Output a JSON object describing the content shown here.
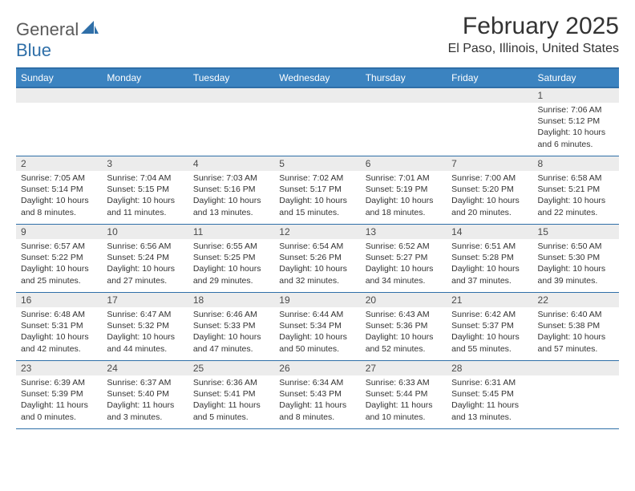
{
  "logo": {
    "word1": "General",
    "word2": "Blue"
  },
  "title": "February 2025",
  "location": "El Paso, Illinois, United States",
  "colors": {
    "header_bg": "#3b83c0",
    "header_border": "#2f6fa8",
    "date_bg": "#ececec",
    "text": "#333333",
    "logo_gray": "#5a5a5a",
    "logo_blue": "#2f6fa8"
  },
  "day_names": [
    "Sunday",
    "Monday",
    "Tuesday",
    "Wednesday",
    "Thursday",
    "Friday",
    "Saturday"
  ],
  "weeks": [
    [
      {
        "date": "",
        "lines": []
      },
      {
        "date": "",
        "lines": []
      },
      {
        "date": "",
        "lines": []
      },
      {
        "date": "",
        "lines": []
      },
      {
        "date": "",
        "lines": []
      },
      {
        "date": "",
        "lines": []
      },
      {
        "date": "1",
        "lines": [
          "Sunrise: 7:06 AM",
          "Sunset: 5:12 PM",
          "Daylight: 10 hours and 6 minutes."
        ]
      }
    ],
    [
      {
        "date": "2",
        "lines": [
          "Sunrise: 7:05 AM",
          "Sunset: 5:14 PM",
          "Daylight: 10 hours and 8 minutes."
        ]
      },
      {
        "date": "3",
        "lines": [
          "Sunrise: 7:04 AM",
          "Sunset: 5:15 PM",
          "Daylight: 10 hours and 11 minutes."
        ]
      },
      {
        "date": "4",
        "lines": [
          "Sunrise: 7:03 AM",
          "Sunset: 5:16 PM",
          "Daylight: 10 hours and 13 minutes."
        ]
      },
      {
        "date": "5",
        "lines": [
          "Sunrise: 7:02 AM",
          "Sunset: 5:17 PM",
          "Daylight: 10 hours and 15 minutes."
        ]
      },
      {
        "date": "6",
        "lines": [
          "Sunrise: 7:01 AM",
          "Sunset: 5:19 PM",
          "Daylight: 10 hours and 18 minutes."
        ]
      },
      {
        "date": "7",
        "lines": [
          "Sunrise: 7:00 AM",
          "Sunset: 5:20 PM",
          "Daylight: 10 hours and 20 minutes."
        ]
      },
      {
        "date": "8",
        "lines": [
          "Sunrise: 6:58 AM",
          "Sunset: 5:21 PM",
          "Daylight: 10 hours and 22 minutes."
        ]
      }
    ],
    [
      {
        "date": "9",
        "lines": [
          "Sunrise: 6:57 AM",
          "Sunset: 5:22 PM",
          "Daylight: 10 hours and 25 minutes."
        ]
      },
      {
        "date": "10",
        "lines": [
          "Sunrise: 6:56 AM",
          "Sunset: 5:24 PM",
          "Daylight: 10 hours and 27 minutes."
        ]
      },
      {
        "date": "11",
        "lines": [
          "Sunrise: 6:55 AM",
          "Sunset: 5:25 PM",
          "Daylight: 10 hours and 29 minutes."
        ]
      },
      {
        "date": "12",
        "lines": [
          "Sunrise: 6:54 AM",
          "Sunset: 5:26 PM",
          "Daylight: 10 hours and 32 minutes."
        ]
      },
      {
        "date": "13",
        "lines": [
          "Sunrise: 6:52 AM",
          "Sunset: 5:27 PM",
          "Daylight: 10 hours and 34 minutes."
        ]
      },
      {
        "date": "14",
        "lines": [
          "Sunrise: 6:51 AM",
          "Sunset: 5:28 PM",
          "Daylight: 10 hours and 37 minutes."
        ]
      },
      {
        "date": "15",
        "lines": [
          "Sunrise: 6:50 AM",
          "Sunset: 5:30 PM",
          "Daylight: 10 hours and 39 minutes."
        ]
      }
    ],
    [
      {
        "date": "16",
        "lines": [
          "Sunrise: 6:48 AM",
          "Sunset: 5:31 PM",
          "Daylight: 10 hours and 42 minutes."
        ]
      },
      {
        "date": "17",
        "lines": [
          "Sunrise: 6:47 AM",
          "Sunset: 5:32 PM",
          "Daylight: 10 hours and 44 minutes."
        ]
      },
      {
        "date": "18",
        "lines": [
          "Sunrise: 6:46 AM",
          "Sunset: 5:33 PM",
          "Daylight: 10 hours and 47 minutes."
        ]
      },
      {
        "date": "19",
        "lines": [
          "Sunrise: 6:44 AM",
          "Sunset: 5:34 PM",
          "Daylight: 10 hours and 50 minutes."
        ]
      },
      {
        "date": "20",
        "lines": [
          "Sunrise: 6:43 AM",
          "Sunset: 5:36 PM",
          "Daylight: 10 hours and 52 minutes."
        ]
      },
      {
        "date": "21",
        "lines": [
          "Sunrise: 6:42 AM",
          "Sunset: 5:37 PM",
          "Daylight: 10 hours and 55 minutes."
        ]
      },
      {
        "date": "22",
        "lines": [
          "Sunrise: 6:40 AM",
          "Sunset: 5:38 PM",
          "Daylight: 10 hours and 57 minutes."
        ]
      }
    ],
    [
      {
        "date": "23",
        "lines": [
          "Sunrise: 6:39 AM",
          "Sunset: 5:39 PM",
          "Daylight: 11 hours and 0 minutes."
        ]
      },
      {
        "date": "24",
        "lines": [
          "Sunrise: 6:37 AM",
          "Sunset: 5:40 PM",
          "Daylight: 11 hours and 3 minutes."
        ]
      },
      {
        "date": "25",
        "lines": [
          "Sunrise: 6:36 AM",
          "Sunset: 5:41 PM",
          "Daylight: 11 hours and 5 minutes."
        ]
      },
      {
        "date": "26",
        "lines": [
          "Sunrise: 6:34 AM",
          "Sunset: 5:43 PM",
          "Daylight: 11 hours and 8 minutes."
        ]
      },
      {
        "date": "27",
        "lines": [
          "Sunrise: 6:33 AM",
          "Sunset: 5:44 PM",
          "Daylight: 11 hours and 10 minutes."
        ]
      },
      {
        "date": "28",
        "lines": [
          "Sunrise: 6:31 AM",
          "Sunset: 5:45 PM",
          "Daylight: 11 hours and 13 minutes."
        ]
      },
      {
        "date": "",
        "lines": []
      }
    ]
  ]
}
